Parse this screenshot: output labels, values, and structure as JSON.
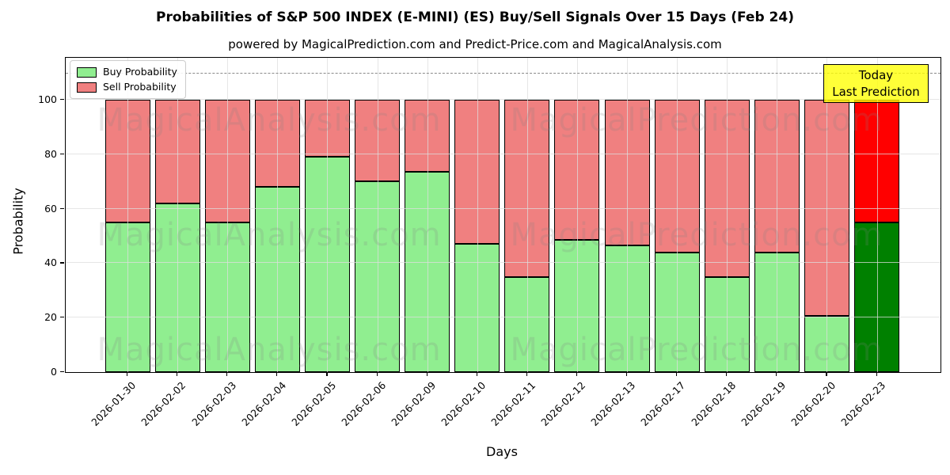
{
  "chart_data": {
    "type": "bar",
    "stacked": true,
    "title": "Probabilities of S&P 500 INDEX (E-MINI) (ES) Buy/Sell Signals Over 15 Days (Feb 24)",
    "subtitle": "powered by MagicalPrediction.com and Predict-Price.com and MagicalAnalysis.com",
    "xlabel": "Days",
    "ylabel": "Probability",
    "ylim": [
      0,
      115
    ],
    "yticks": [
      0,
      20,
      40,
      60,
      80,
      100
    ],
    "dashed_hline": 110,
    "grid": true,
    "legend_position": "upper-left",
    "categories": [
      "2026-01-30",
      "2026-02-02",
      "2026-02-03",
      "2026-02-04",
      "2026-02-05",
      "2026-02-06",
      "2026-02-09",
      "2026-02-10",
      "2026-02-11",
      "2026-02-12",
      "2026-02-13",
      "2026-02-17",
      "2026-02-18",
      "2026-02-19",
      "2026-02-20",
      "2026-02-23"
    ],
    "series": [
      {
        "name": "Buy Probability",
        "color": "#90EE90",
        "today_color": "#008000",
        "values": [
          55,
          62,
          55,
          68,
          79,
          70,
          73.5,
          47,
          35,
          48.5,
          46.5,
          44,
          35,
          44,
          20.5,
          55
        ]
      },
      {
        "name": "Sell Probability",
        "color": "#F08080",
        "today_color": "#FF0000",
        "values": [
          45,
          38,
          45,
          32,
          21,
          30,
          26.5,
          53,
          65,
          51.5,
          53.5,
          56,
          65,
          56,
          79.5,
          45
        ]
      }
    ],
    "legend": {
      "items": [
        {
          "label": "Buy Probability",
          "color": "#90EE90"
        },
        {
          "label": "Sell Probability",
          "color": "#F08080"
        }
      ]
    },
    "annotation": {
      "line1": "Today",
      "line2": "Last Prediction",
      "bg_color": "#FFFF00",
      "applies_to": "2026-02-23"
    },
    "watermarks": [
      "MagicalAnalysis.com",
      "MagicalPrediction.com"
    ]
  }
}
